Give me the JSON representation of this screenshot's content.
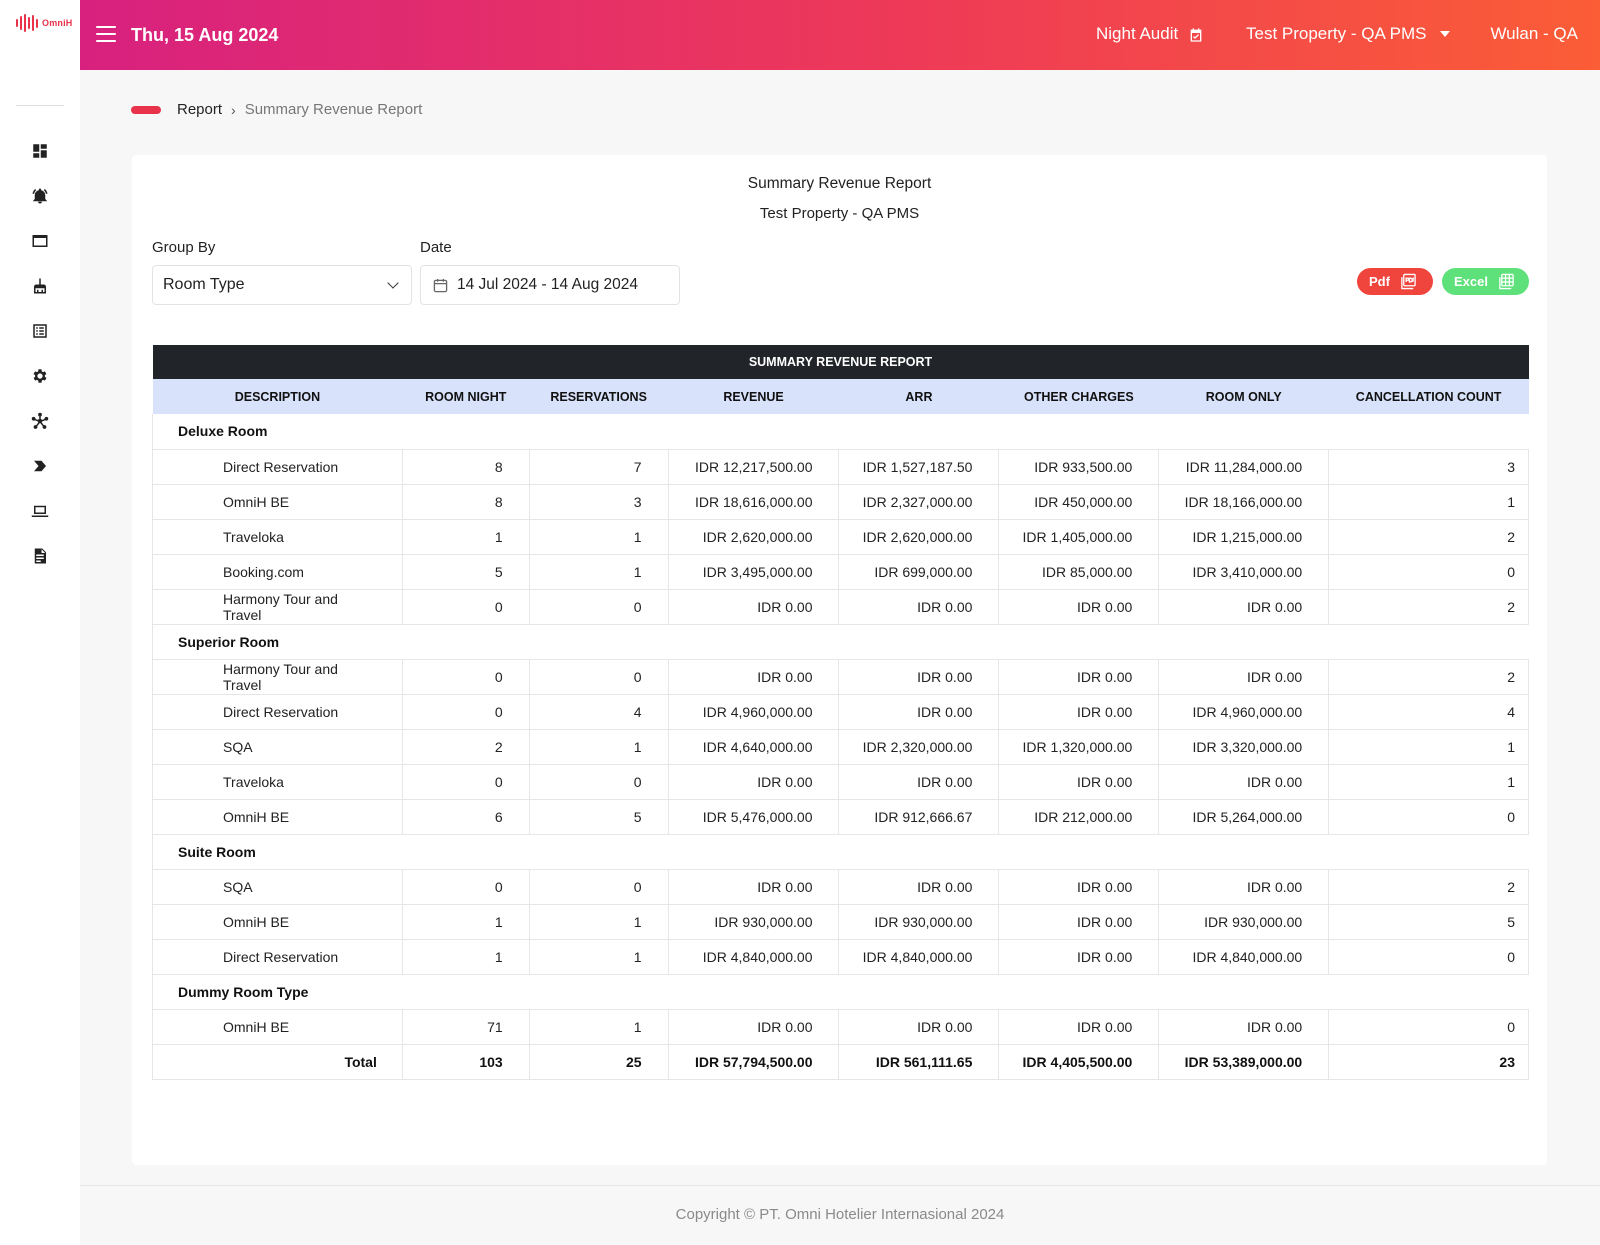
{
  "app": {
    "logo_text": "OmniH"
  },
  "header": {
    "date": "Thu, 15 Aug 2024",
    "night_audit": "Night Audit",
    "property": "Test Property - QA PMS",
    "user": "Wulan - QA"
  },
  "sidebar": {
    "icons": [
      "dashboard-icon",
      "bell-icon",
      "window-icon",
      "housekeeping-icon",
      "list-icon",
      "gear-icon",
      "network-icon",
      "arrow-tag-icon",
      "laptop-icon",
      "report-icon"
    ]
  },
  "breadcrumb": {
    "parent": "Report",
    "current": "Summary Revenue Report"
  },
  "report": {
    "title": "Summary Revenue Report",
    "property": "Test Property - QA PMS",
    "group_by_label": "Group By",
    "group_by_value": "Room Type",
    "date_label": "Date",
    "date_value": "14 Jul 2024 - 14 Aug 2024",
    "pdf_label": "Pdf",
    "excel_label": "Excel"
  },
  "table": {
    "title": "SUMMARY REVENUE REPORT",
    "columns": [
      "DESCRIPTION",
      "ROOM NIGHT",
      "RESERVATIONS",
      "REVENUE",
      "ARR",
      "OTHER CHARGES",
      "ROOM ONLY",
      "CANCELLATION COUNT"
    ],
    "groups": [
      {
        "name": "Deluxe Room",
        "rows": [
          [
            "Direct Reservation",
            "8",
            "7",
            "IDR 12,217,500.00",
            "IDR 1,527,187.50",
            "IDR 933,500.00",
            "IDR 11,284,000.00",
            "3"
          ],
          [
            "OmniH BE",
            "8",
            "3",
            "IDR 18,616,000.00",
            "IDR 2,327,000.00",
            "IDR 450,000.00",
            "IDR 18,166,000.00",
            "1"
          ],
          [
            "Traveloka",
            "1",
            "1",
            "IDR 2,620,000.00",
            "IDR 2,620,000.00",
            "IDR 1,405,000.00",
            "IDR 1,215,000.00",
            "2"
          ],
          [
            "Booking.com",
            "5",
            "1",
            "IDR 3,495,000.00",
            "IDR 699,000.00",
            "IDR 85,000.00",
            "IDR 3,410,000.00",
            "0"
          ],
          [
            "Harmony Tour and Travel",
            "0",
            "0",
            "IDR 0.00",
            "IDR 0.00",
            "IDR 0.00",
            "IDR 0.00",
            "2"
          ]
        ]
      },
      {
        "name": "Superior Room",
        "rows": [
          [
            "Harmony Tour and Travel",
            "0",
            "0",
            "IDR 0.00",
            "IDR 0.00",
            "IDR 0.00",
            "IDR 0.00",
            "2"
          ],
          [
            "Direct Reservation",
            "0",
            "4",
            "IDR 4,960,000.00",
            "IDR 0.00",
            "IDR 0.00",
            "IDR 4,960,000.00",
            "4"
          ],
          [
            "SQA",
            "2",
            "1",
            "IDR 4,640,000.00",
            "IDR 2,320,000.00",
            "IDR 1,320,000.00",
            "IDR 3,320,000.00",
            "1"
          ],
          [
            "Traveloka",
            "0",
            "0",
            "IDR 0.00",
            "IDR 0.00",
            "IDR 0.00",
            "IDR 0.00",
            "1"
          ],
          [
            "OmniH BE",
            "6",
            "5",
            "IDR 5,476,000.00",
            "IDR 912,666.67",
            "IDR 212,000.00",
            "IDR 5,264,000.00",
            "0"
          ]
        ]
      },
      {
        "name": "Suite Room",
        "rows": [
          [
            "SQA",
            "0",
            "0",
            "IDR 0.00",
            "IDR 0.00",
            "IDR 0.00",
            "IDR 0.00",
            "2"
          ],
          [
            "OmniH BE",
            "1",
            "1",
            "IDR 930,000.00",
            "IDR 930,000.00",
            "IDR 0.00",
            "IDR 930,000.00",
            "5"
          ],
          [
            "Direct Reservation",
            "1",
            "1",
            "IDR 4,840,000.00",
            "IDR 4,840,000.00",
            "IDR 0.00",
            "IDR 4,840,000.00",
            "0"
          ]
        ]
      },
      {
        "name": "Dummy Room Type",
        "rows": [
          [
            "OmniH BE",
            "71",
            "1",
            "IDR 0.00",
            "IDR 0.00",
            "IDR 0.00",
            "IDR 0.00",
            "0"
          ]
        ]
      }
    ],
    "total": [
      "Total",
      "103",
      "25",
      "IDR 57,794,500.00",
      "IDR 561,111.65",
      "IDR 4,405,500.00",
      "IDR 53,389,000.00",
      "23"
    ]
  },
  "footer": {
    "copyright": "Copyright © PT. Omni Hotelier Internasional 2024"
  },
  "colors": {
    "accent": "#e8334a",
    "header_start": "#d8217f",
    "header_end": "#fb5d36",
    "table_head": "#d9e2fb",
    "table_title": "#212429",
    "pdf": "#f0453d",
    "excel": "#5ee07a"
  }
}
